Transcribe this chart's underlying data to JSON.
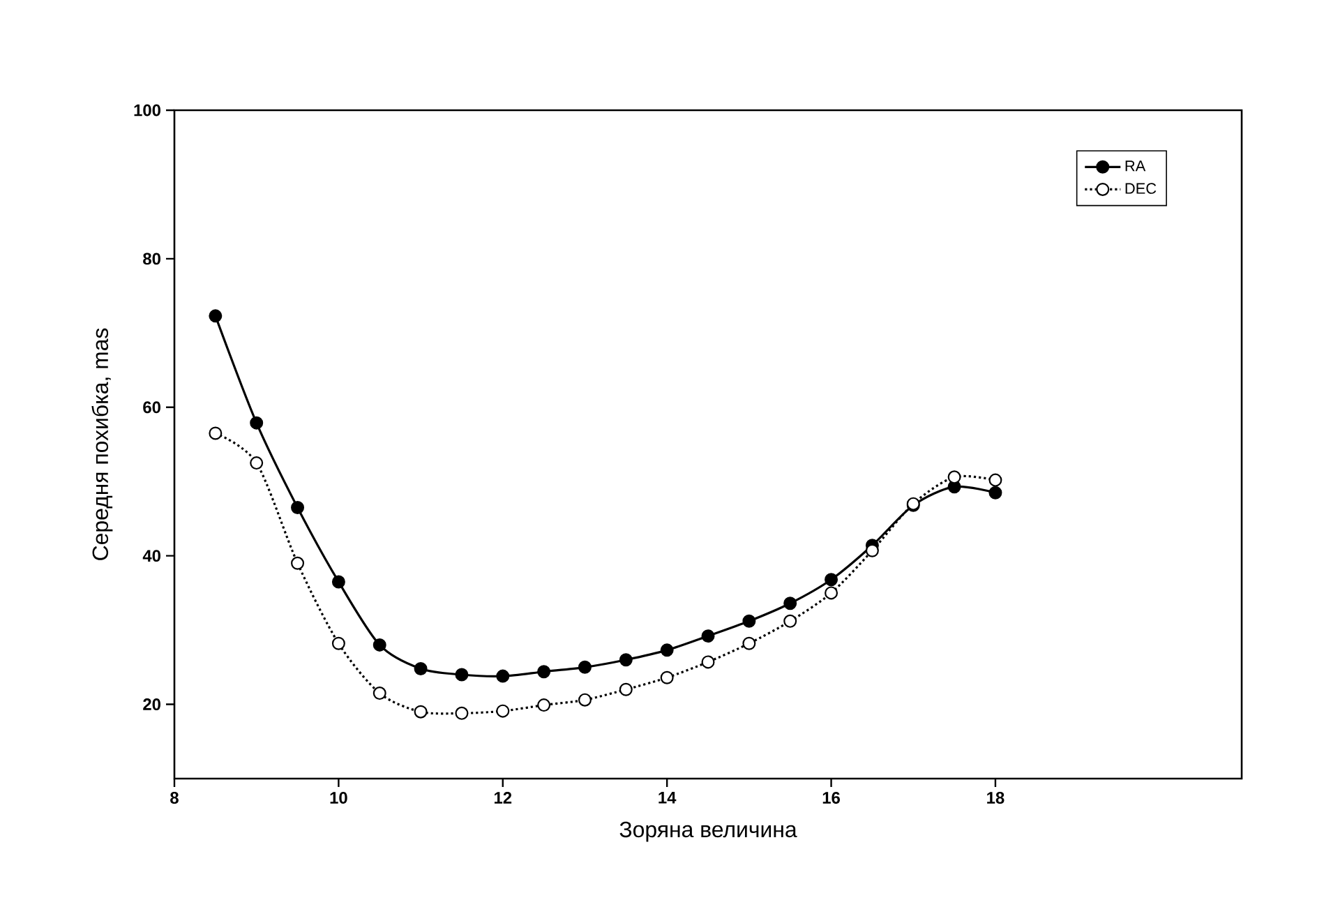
{
  "chart_data": {
    "type": "line",
    "xlabel": "Зоряна величина",
    "ylabel": "Середня похибка, mas",
    "x": [
      8.5,
      9,
      9.5,
      10,
      10.5,
      11,
      11.5,
      12,
      12.5,
      13,
      13.5,
      14,
      14.5,
      15,
      15.5,
      16,
      16.5,
      17,
      17.5,
      18
    ],
    "series": [
      {
        "name": "RA",
        "color": "#000000",
        "line_style": "solid",
        "values": [
          72.3,
          57.9,
          46.5,
          36.5,
          28,
          24.8,
          24,
          23.8,
          24.4,
          25,
          26,
          27.3,
          29.2,
          31.2,
          33.6,
          36.8,
          41.4,
          46.8,
          49.3,
          48.5
        ]
      },
      {
        "name": "DEC",
        "color": "#000000",
        "line_style": "dotted",
        "values": [
          56.5,
          52.5,
          39,
          28.2,
          21.5,
          19,
          18.8,
          19.1,
          19.9,
          20.6,
          22,
          23.6,
          25.7,
          28.2,
          31.2,
          35,
          40.7,
          47,
          50.6,
          50.2
        ]
      }
    ],
    "xlim": [
      8,
      21
    ],
    "ylim": [
      10,
      100
    ],
    "xticks": [
      8,
      10,
      12,
      14,
      16,
      18
    ],
    "yticks": [
      20,
      40,
      60,
      80,
      100
    ],
    "grid": false,
    "legend": "top right",
    "marker": "circle"
  }
}
